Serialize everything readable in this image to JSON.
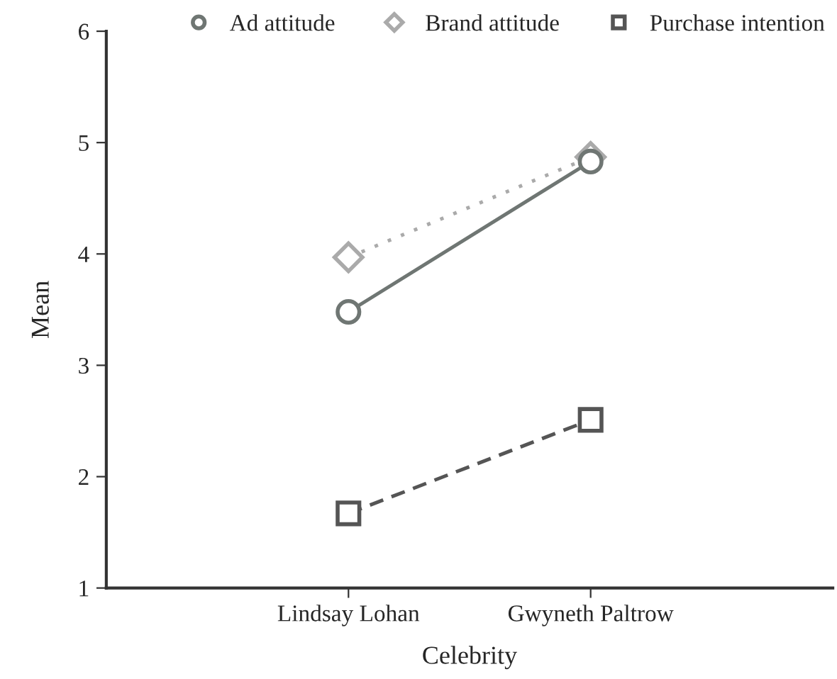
{
  "chart_data": {
    "type": "line",
    "xlabel": "Celebrity",
    "ylabel": "Mean",
    "categories": [
      "Lindsay Lohan",
      "Gwyneth Paltrow"
    ],
    "series": [
      {
        "name": "Ad attitude",
        "color": "#6f7673",
        "values": [
          3.48,
          4.83
        ],
        "marker": "circle",
        "line_style": "solid"
      },
      {
        "name": "Brand attitude",
        "color": "#aaaaaa",
        "values": [
          3.97,
          4.87
        ],
        "marker": "diamond",
        "line_style": "dotted"
      },
      {
        "name": "Purchase intention",
        "color": "#555555",
        "values": [
          1.67,
          2.51
        ],
        "marker": "square",
        "line_style": "dashed"
      }
    ],
    "ylim": [
      1,
      6
    ],
    "yticks": [
      1,
      2,
      3,
      4,
      5,
      6
    ],
    "grid": false,
    "legend": "top"
  }
}
